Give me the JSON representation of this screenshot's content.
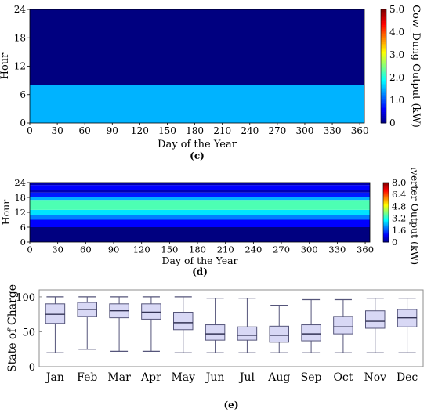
{
  "chart_data": [
    {
      "panel_label": "(c)",
      "type": "heatmap",
      "xlabel": "Day of the Year",
      "ylabel": "Hour",
      "colorbar_label": "Cow_Dung Output (kW)",
      "x_ticks": [
        0,
        30,
        60,
        90,
        120,
        150,
        180,
        210,
        240,
        270,
        300,
        330,
        360
      ],
      "y_ticks": [
        0,
        6,
        12,
        18,
        24
      ],
      "colorbar_ticks": [
        "0",
        "1.0",
        "2.0",
        "3.0",
        "4.0",
        "5.0"
      ],
      "xlim": [
        0,
        365
      ],
      "ylim": [
        0,
        24
      ],
      "zlim": [
        0,
        5
      ],
      "colormap": "jet",
      "bands": [
        {
          "hours": [
            0,
            8
          ],
          "value": 1.5
        },
        {
          "hours": [
            8,
            24
          ],
          "value": 0.0
        }
      ]
    },
    {
      "panel_label": "(d)",
      "type": "heatmap",
      "xlabel": "Day of the Year",
      "ylabel": "Hour",
      "colorbar_label": "Inverter Output (kW)",
      "x_ticks": [
        0,
        30,
        60,
        90,
        120,
        150,
        180,
        210,
        240,
        270,
        300,
        330,
        360
      ],
      "y_ticks": [
        0,
        6,
        12,
        18,
        24
      ],
      "colorbar_ticks": [
        "0",
        "1.6",
        "3.2",
        "4.8",
        "6.4",
        "8.0"
      ],
      "xlim": [
        0,
        365
      ],
      "ylim": [
        0,
        24
      ],
      "zlim": [
        0,
        8
      ],
      "colormap": "jet",
      "bands": [
        {
          "hours": [
            0,
            6
          ],
          "value": 0.0
        },
        {
          "hours": [
            6,
            9
          ],
          "value": 1.0
        },
        {
          "hours": [
            9,
            11
          ],
          "value": 2.0
        },
        {
          "hours": [
            11,
            13
          ],
          "value": 2.8
        },
        {
          "hours": [
            13,
            17
          ],
          "value": 3.6
        },
        {
          "hours": [
            17,
            18
          ],
          "value": 2.4
        },
        {
          "hours": [
            18,
            20
          ],
          "value": 1.2
        },
        {
          "hours": [
            20,
            21
          ],
          "value": 0.4
        },
        {
          "hours": [
            21,
            23
          ],
          "value": 1.0
        },
        {
          "hours": [
            23,
            24
          ],
          "value": 0.3
        }
      ]
    },
    {
      "panel_label": "(e)",
      "type": "box",
      "ylabel": "State of Charge",
      "y_ticks": [
        0,
        50,
        100
      ],
      "ylim": [
        0,
        110
      ],
      "categories": [
        "Jan",
        "Feb",
        "Mar",
        "Apr",
        "May",
        "Jun",
        "Jul",
        "Aug",
        "Sep",
        "Oct",
        "Nov",
        "Dec"
      ],
      "boxes": [
        {
          "min": 20,
          "q1": 62,
          "median": 75,
          "q3": 90,
          "max": 100
        },
        {
          "min": 25,
          "q1": 72,
          "median": 82,
          "q3": 92,
          "max": 100
        },
        {
          "min": 22,
          "q1": 70,
          "median": 80,
          "q3": 90,
          "max": 100
        },
        {
          "min": 22,
          "q1": 68,
          "median": 78,
          "q3": 90,
          "max": 100
        },
        {
          "min": 20,
          "q1": 53,
          "median": 63,
          "q3": 78,
          "max": 100
        },
        {
          "min": 20,
          "q1": 38,
          "median": 47,
          "q3": 60,
          "max": 98
        },
        {
          "min": 20,
          "q1": 38,
          "median": 45,
          "q3": 57,
          "max": 98
        },
        {
          "min": 20,
          "q1": 35,
          "median": 45,
          "q3": 58,
          "max": 88
        },
        {
          "min": 20,
          "q1": 37,
          "median": 47,
          "q3": 60,
          "max": 96
        },
        {
          "min": 20,
          "q1": 47,
          "median": 57,
          "q3": 72,
          "max": 96
        },
        {
          "min": 20,
          "q1": 55,
          "median": 65,
          "q3": 80,
          "max": 98
        },
        {
          "min": 20,
          "q1": 57,
          "median": 70,
          "q3": 82,
          "max": 98
        }
      ],
      "box_fill": "#d8d8f5",
      "box_stroke": "#55557a"
    }
  ]
}
